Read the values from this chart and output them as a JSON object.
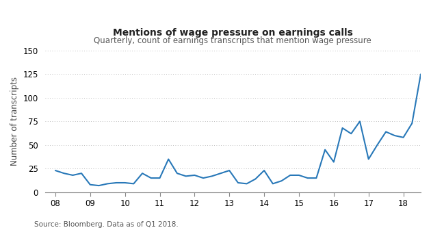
{
  "title": "Mentions of wage pressure on earnings calls",
  "subtitle": "Quarterly, count of earnings transcripts that mention wage pressure",
  "ylabel": "Number of transcripts",
  "source": "Source: Bloomberg. Data as of Q1 2018.",
  "line_color": "#2878b8",
  "background_color": "#ffffff",
  "grid_color": "#aaaaaa",
  "title_fontsize": 10,
  "subtitle_fontsize": 8.5,
  "ylabel_fontsize": 8.5,
  "tick_fontsize": 8.5,
  "ylim": [
    0,
    150
  ],
  "yticks": [
    0,
    25,
    50,
    75,
    100,
    125,
    150
  ],
  "xtick_labels": [
    "08",
    "09",
    "10",
    "11",
    "12",
    "13",
    "14",
    "15",
    "16",
    "17",
    "18"
  ],
  "values": [
    23,
    20,
    18,
    20,
    8,
    7,
    9,
    10,
    10,
    9,
    20,
    15,
    15,
    35,
    20,
    17,
    18,
    15,
    17,
    20,
    23,
    10,
    9,
    14,
    23,
    9,
    12,
    18,
    18,
    15,
    15,
    45,
    32,
    68,
    62,
    75,
    35,
    50,
    64,
    60,
    58,
    73,
    125
  ]
}
